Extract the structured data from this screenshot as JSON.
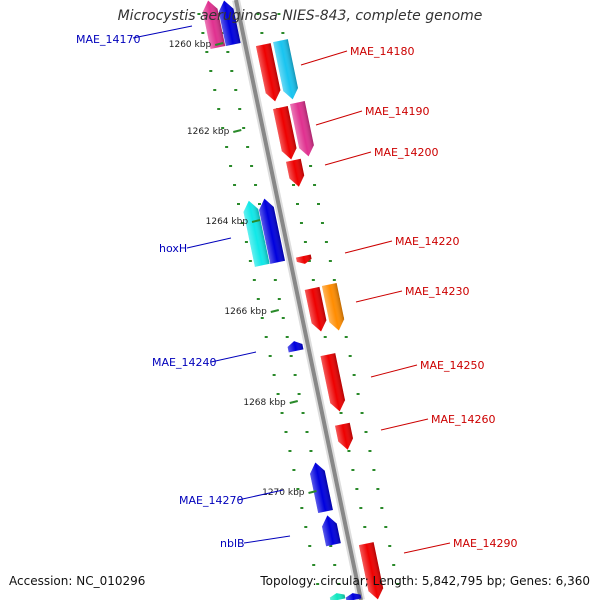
{
  "title": "Microcystis aeruginosa NIES-843, complete genome",
  "footer": {
    "accession": "Accession: NC_010296",
    "summary": "Topology: circular; Length: 5,842,795 bp; Genes: 6,360"
  },
  "colors": {
    "backbone": "#888888",
    "dots": "#2a8a2a",
    "forward_label": "#cc0000",
    "reverse_label": "#0000bb"
  },
  "ticks": [
    {
      "label": "1260 kbp"
    },
    {
      "label": "1262 kbp"
    },
    {
      "label": "1264 kbp"
    },
    {
      "label": "1266 kbp"
    },
    {
      "label": "1268 kbp"
    },
    {
      "label": "1270 kbp"
    }
  ],
  "labels": [
    {
      "text": "MAE_14170",
      "strand": "reverse"
    },
    {
      "text": "MAE_14180",
      "strand": "forward"
    },
    {
      "text": "MAE_14190",
      "strand": "forward"
    },
    {
      "text": "MAE_14200",
      "strand": "forward"
    },
    {
      "text": "hoxH",
      "strand": "reverse"
    },
    {
      "text": "MAE_14220",
      "strand": "forward"
    },
    {
      "text": "MAE_14230",
      "strand": "forward"
    },
    {
      "text": "MAE_14240",
      "strand": "reverse"
    },
    {
      "text": "MAE_14250",
      "strand": "forward"
    },
    {
      "text": "MAE_14260",
      "strand": "forward"
    },
    {
      "text": "MAE_14270",
      "strand": "reverse"
    },
    {
      "text": "nblB",
      "strand": "reverse"
    },
    {
      "text": "MAE_14290",
      "strand": "forward"
    }
  ],
  "genes": [
    {
      "strand": "reverse",
      "color": "#e0308f"
    },
    {
      "strand": "reverse",
      "color": "#0000dd"
    },
    {
      "strand": "forward",
      "color": "#ee0000"
    },
    {
      "strand": "forward",
      "color": "#18c4f0"
    },
    {
      "strand": "forward",
      "color": "#ee0000"
    },
    {
      "strand": "forward",
      "color": "#e0308f"
    },
    {
      "strand": "forward",
      "color": "#ee0000"
    },
    {
      "strand": "reverse",
      "color": "#10e8e8"
    },
    {
      "strand": "reverse",
      "color": "#0000dd"
    },
    {
      "strand": "forward",
      "color": "#ee0000"
    },
    {
      "strand": "forward",
      "color": "#ee0000"
    },
    {
      "strand": "forward",
      "color": "#ff8c00"
    },
    {
      "strand": "reverse",
      "color": "#0000dd"
    },
    {
      "strand": "forward",
      "color": "#ee0000"
    },
    {
      "strand": "forward",
      "color": "#ee0000"
    },
    {
      "strand": "reverse",
      "color": "#0000dd"
    },
    {
      "strand": "reverse",
      "color": "#0000dd"
    },
    {
      "strand": "forward",
      "color": "#ee0000"
    },
    {
      "strand": "reverse",
      "color": "#10e8c0"
    },
    {
      "strand": "reverse",
      "color": "#0000dd"
    }
  ]
}
